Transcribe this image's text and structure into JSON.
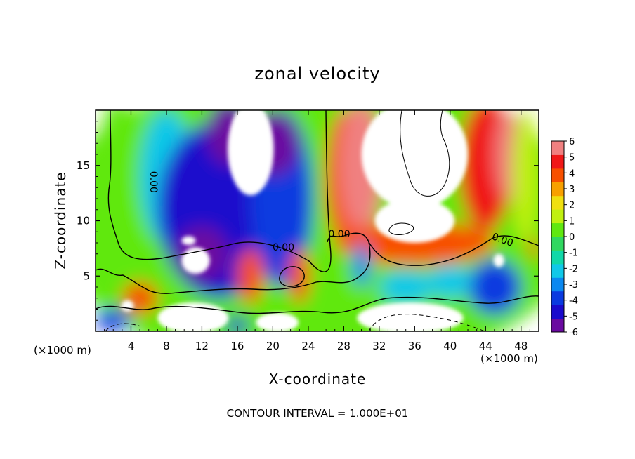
{
  "chart_data": {
    "type": "heatmap",
    "title": "zonal velocity",
    "xlabel": "X-coordinate",
    "ylabel": "Z-coordinate",
    "x_unit_label": "(×1000 m)",
    "xlim": [
      0,
      50
    ],
    "ylim": [
      0,
      20
    ],
    "x_ticks": [
      4,
      8,
      12,
      16,
      20,
      24,
      28,
      32,
      36,
      40,
      44,
      48
    ],
    "y_ticks": [
      5,
      10,
      15
    ],
    "colorbar": {
      "range": [
        -6,
        6
      ],
      "ticks": [
        6,
        5,
        4,
        3,
        2,
        1,
        0,
        -1,
        -2,
        -3,
        -4,
        -5,
        -6
      ],
      "colors": [
        "#6a0aa0",
        "#1a0acc",
        "#0a3ae0",
        "#0a88f0",
        "#10c8e8",
        "#10d8a8",
        "#30d860",
        "#60e810",
        "#c0f010",
        "#f0e010",
        "#f8a000",
        "#f85000",
        "#f01818",
        "#f08080"
      ]
    },
    "contour_labels": [
      {
        "x": 6.2,
        "y": 13.5,
        "text": "0.00"
      },
      {
        "x": 21.2,
        "y": 7.3,
        "text": "0.00"
      },
      {
        "x": 27.5,
        "y": 8.5,
        "text": "0.00"
      },
      {
        "x": 45.8,
        "y": 8.0,
        "text": "0.00"
      }
    ],
    "regions": [
      {
        "x": 25,
        "y": 10,
        "v": 0.4,
        "rx": 30,
        "ry": 14
      },
      {
        "x": 2.5,
        "y": 13,
        "v": 0.8,
        "rx": 2.5,
        "ry": 8
      },
      {
        "x": 8,
        "y": 14,
        "v": -2.0,
        "rx": 3,
        "ry": 6
      },
      {
        "x": 14,
        "y": 11,
        "v": -4.6,
        "rx": 7,
        "ry": 8
      },
      {
        "x": 12,
        "y": 7,
        "v": -5.4,
        "rx": 3,
        "ry": 2.5
      },
      {
        "x": 21,
        "y": 12,
        "v": -4.2,
        "rx": 3.5,
        "ry": 8
      },
      {
        "x": 15,
        "y": 18,
        "v": -6.2,
        "rx": 2.5,
        "ry": 3
      },
      {
        "x": 20,
        "y": 17,
        "v": -5.5,
        "rx": 3,
        "ry": 3
      },
      {
        "x": 28,
        "y": 14,
        "v": 3.5,
        "rx": 2,
        "ry": 6
      },
      {
        "x": 30,
        "y": 15,
        "v": 5.2,
        "rx": 2.5,
        "ry": 6
      },
      {
        "x": 44,
        "y": 15,
        "v": 4.8,
        "rx": 3,
        "ry": 6
      },
      {
        "x": 46.5,
        "y": 16,
        "v": 5.5,
        "rx": 1.5,
        "ry": 4
      },
      {
        "x": 48.5,
        "y": 14,
        "v": 1.5,
        "rx": 1.5,
        "ry": 6
      },
      {
        "x": 36,
        "y": 8,
        "v": 4.0,
        "rx": 9,
        "ry": 2
      },
      {
        "x": 17.5,
        "y": 5,
        "v": 4.2,
        "rx": 1.5,
        "ry": 2.5
      },
      {
        "x": 23,
        "y": 5,
        "v": 3.5,
        "rx": 1.2,
        "ry": 2.5
      },
      {
        "x": 5,
        "y": 3,
        "v": 3.8,
        "rx": 2,
        "ry": 1.5
      },
      {
        "x": 2,
        "y": 1,
        "v": -3.5,
        "rx": 2,
        "ry": 1
      },
      {
        "x": 16,
        "y": 0.5,
        "v": -4.5,
        "rx": 1.2,
        "ry": 0.8
      },
      {
        "x": 45,
        "y": 4,
        "v": -4.0,
        "rx": 3,
        "ry": 2.5
      },
      {
        "x": 40,
        "y": 4.5,
        "v": -2.4,
        "rx": 2.5,
        "ry": 1.5
      },
      {
        "x": 35,
        "y": 4,
        "v": -1.8,
        "rx": 3,
        "ry": 1.5
      },
      {
        "x": 30,
        "y": 6,
        "v": -3.0,
        "rx": 1,
        "ry": 2
      },
      {
        "x": 49.5,
        "y": 7.5,
        "v": 4.0,
        "rx": 0.6,
        "ry": 1
      }
    ],
    "saturated_regions": [
      {
        "x": 17.5,
        "y": 16.5,
        "rx": 2.6,
        "ry": 4.2
      },
      {
        "x": 36,
        "y": 16,
        "rx": 6,
        "ry": 5
      },
      {
        "x": 36,
        "y": 10,
        "rx": 4.5,
        "ry": 2
      },
      {
        "x": 11.3,
        "y": 6.4,
        "rx": 1.6,
        "ry": 1.2
      },
      {
        "x": 10.5,
        "y": 8.2,
        "rx": 0.8,
        "ry": 0.4
      },
      {
        "x": 3.6,
        "y": 2.3,
        "rx": 0.7,
        "ry": 0.5
      },
      {
        "x": 11,
        "y": 1.2,
        "rx": 4,
        "ry": 1.4
      },
      {
        "x": 20.5,
        "y": 0.8,
        "rx": 2.4,
        "ry": 0.9
      },
      {
        "x": 35.5,
        "y": 1.2,
        "rx": 6,
        "ry": 1.4
      },
      {
        "x": 45.5,
        "y": 6.4,
        "rx": 0.6,
        "ry": 0.6
      }
    ],
    "footer": "CONTOUR INTERVAL = 1.000E+01"
  }
}
